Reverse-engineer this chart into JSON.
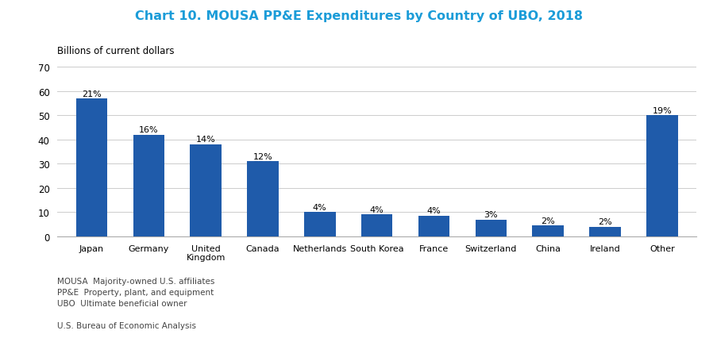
{
  "title": "Chart 10. MOUSA PP&E Expenditures by Country of UBO, 2018",
  "ylabel": "Billions of current dollars",
  "categories": [
    "Japan",
    "Germany",
    "United\nKingdom",
    "Canada",
    "Netherlands",
    "South Korea",
    "France",
    "Switzerland",
    "China",
    "Ireland",
    "Other"
  ],
  "values": [
    57,
    42,
    38,
    31,
    10,
    9,
    8.5,
    7,
    4.5,
    4,
    50
  ],
  "percentages": [
    "21%",
    "16%",
    "14%",
    "12%",
    "4%",
    "4%",
    "4%",
    "3%",
    "2%",
    "2%",
    "19%"
  ],
  "bar_color": "#1F5BAA",
  "ylim": [
    0,
    70
  ],
  "yticks": [
    0,
    10,
    20,
    30,
    40,
    50,
    60,
    70
  ],
  "title_color": "#1B9CD8",
  "footnote_lines": [
    "MOUSA  Majority-owned U.S. affiliates",
    "PP&E  Property, plant, and equipment",
    "UBO  Ultimate beneficial owner",
    "",
    "U.S. Bureau of Economic Analysis"
  ],
  "background_color": "#ffffff"
}
